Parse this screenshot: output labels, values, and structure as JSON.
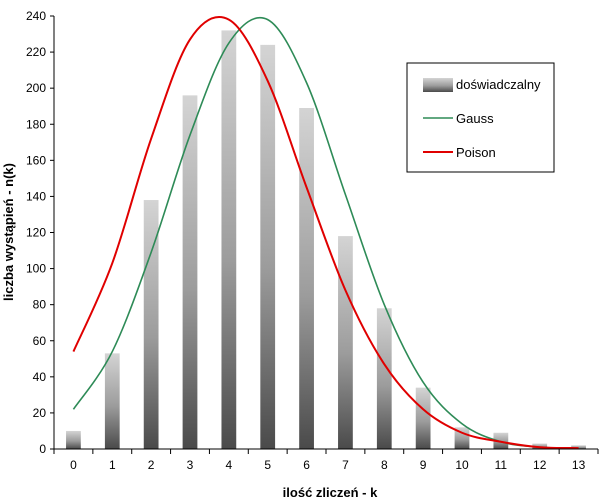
{
  "chart_data": {
    "type": "bar",
    "categories": [
      "0",
      "1",
      "2",
      "3",
      "4",
      "5",
      "6",
      "7",
      "8",
      "9",
      "10",
      "11",
      "12",
      "13"
    ],
    "series": [
      {
        "name": "doświadczalny",
        "kind": "bar",
        "color": "#7a7a7a",
        "values": [
          10,
          53,
          138,
          196,
          232,
          224,
          189,
          118,
          78,
          34,
          12,
          9,
          3,
          2
        ]
      },
      {
        "name": "Gauss",
        "kind": "line",
        "color": "#2e8b57",
        "values": [
          22,
          54,
          109,
          174,
          225,
          238,
          203,
          141,
          80,
          37,
          14,
          4,
          1,
          0.3
        ]
      },
      {
        "name": "Poison",
        "kind": "line",
        "color": "#e00000",
        "values": [
          54,
          103,
          172,
          227,
          238,
          204,
          145,
          88,
          47,
          22,
          9,
          4,
          1,
          0.5
        ]
      }
    ],
    "xlabel": "ilość zliczeń - k",
    "ylabel": "liczba wystąpień - n(k)",
    "ylim": [
      0,
      240
    ],
    "yticks": [
      "0",
      "20",
      "40",
      "60",
      "80",
      "100",
      "120",
      "140",
      "160",
      "180",
      "200",
      "220",
      "240"
    ],
    "legend": {
      "position": "top-right",
      "entries": [
        "doświadczalny",
        "Gauss",
        "Poison"
      ]
    }
  }
}
